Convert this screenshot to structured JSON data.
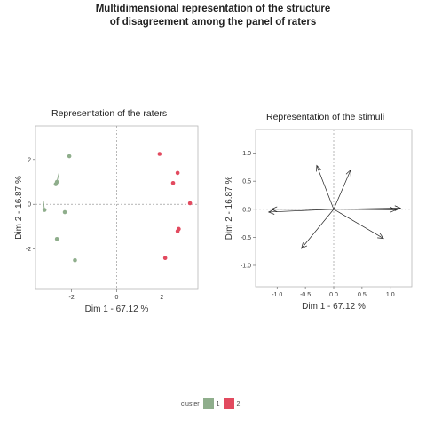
{
  "title_line1": "Multidimensional representation of the structure",
  "title_line2": "of disagreement among the panel of raters",
  "legend": {
    "title": "cluster",
    "items": [
      {
        "label": "1",
        "color": "#8fae8c"
      },
      {
        "label": "2",
        "color": "#e24a5f"
      }
    ]
  },
  "chart_data": [
    {
      "type": "scatter",
      "title": "Representation of the raters",
      "xlabel": "Dim 1 - 67.12 %",
      "ylabel": "Dim 2 - 16.87 %",
      "xlim": [
        -3.6,
        3.6
      ],
      "ylim": [
        -3.8,
        3.5
      ],
      "xticks": [
        -2,
        0,
        2
      ],
      "yticks": [
        -2,
        0,
        2
      ],
      "x_tick_labels": [
        "-2",
        "0",
        "2"
      ],
      "y_tick_labels": [
        "-2",
        "0",
        "2"
      ],
      "grid": false,
      "series": [
        {
          "name": "1",
          "color": "#8fae8c",
          "points": [
            [
              -2.1,
              2.15
            ],
            [
              -2.65,
              1.0
            ],
            [
              -2.7,
              0.9
            ],
            [
              -3.2,
              -0.25
            ],
            [
              -2.3,
              -0.35
            ],
            [
              -2.65,
              -1.55
            ],
            [
              -1.85,
              -2.5
            ]
          ]
        },
        {
          "name": "2",
          "color": "#e24a5f",
          "points": [
            [
              1.9,
              2.25
            ],
            [
              2.7,
              1.4
            ],
            [
              2.5,
              0.95
            ],
            [
              3.25,
              0.05
            ],
            [
              2.75,
              -1.1
            ],
            [
              2.7,
              -1.2
            ],
            [
              2.15,
              -2.4
            ]
          ]
        }
      ],
      "segments": [
        [
          [
            -2.65,
            1.0
          ],
          [
            -2.55,
            1.45
          ]
        ],
        [
          [
            -3.2,
            -0.25
          ],
          [
            -3.25,
            0.15
          ]
        ]
      ]
    },
    {
      "type": "vector",
      "title": "Representation of the stimuli",
      "xlabel": "Dim 1 - 67.12 %",
      "ylabel": "Dim 2 - 16.87 %",
      "xlim": [
        -1.38,
        1.38
      ],
      "ylim": [
        -1.38,
        1.42
      ],
      "xticks": [
        -1.0,
        -0.5,
        0.0,
        0.5,
        1.0
      ],
      "yticks": [
        -1.0,
        -0.5,
        0.0,
        0.5,
        1.0
      ],
      "x_tick_labels": [
        "-1.0",
        "-0.5",
        "0.0",
        "0.5",
        "1.0"
      ],
      "y_tick_labels": [
        "-1.0",
        "-0.5",
        "0.0",
        "0.5",
        "1.0"
      ],
      "grid": false,
      "vectors": [
        [
          -0.3,
          0.78
        ],
        [
          0.3,
          0.7
        ],
        [
          -0.57,
          -0.7
        ],
        [
          0.88,
          -0.52
        ],
        [
          -1.15,
          -0.05
        ],
        [
          -1.1,
          0.0
        ],
        [
          1.18,
          0.02
        ],
        [
          1.1,
          -0.01
        ]
      ]
    }
  ]
}
